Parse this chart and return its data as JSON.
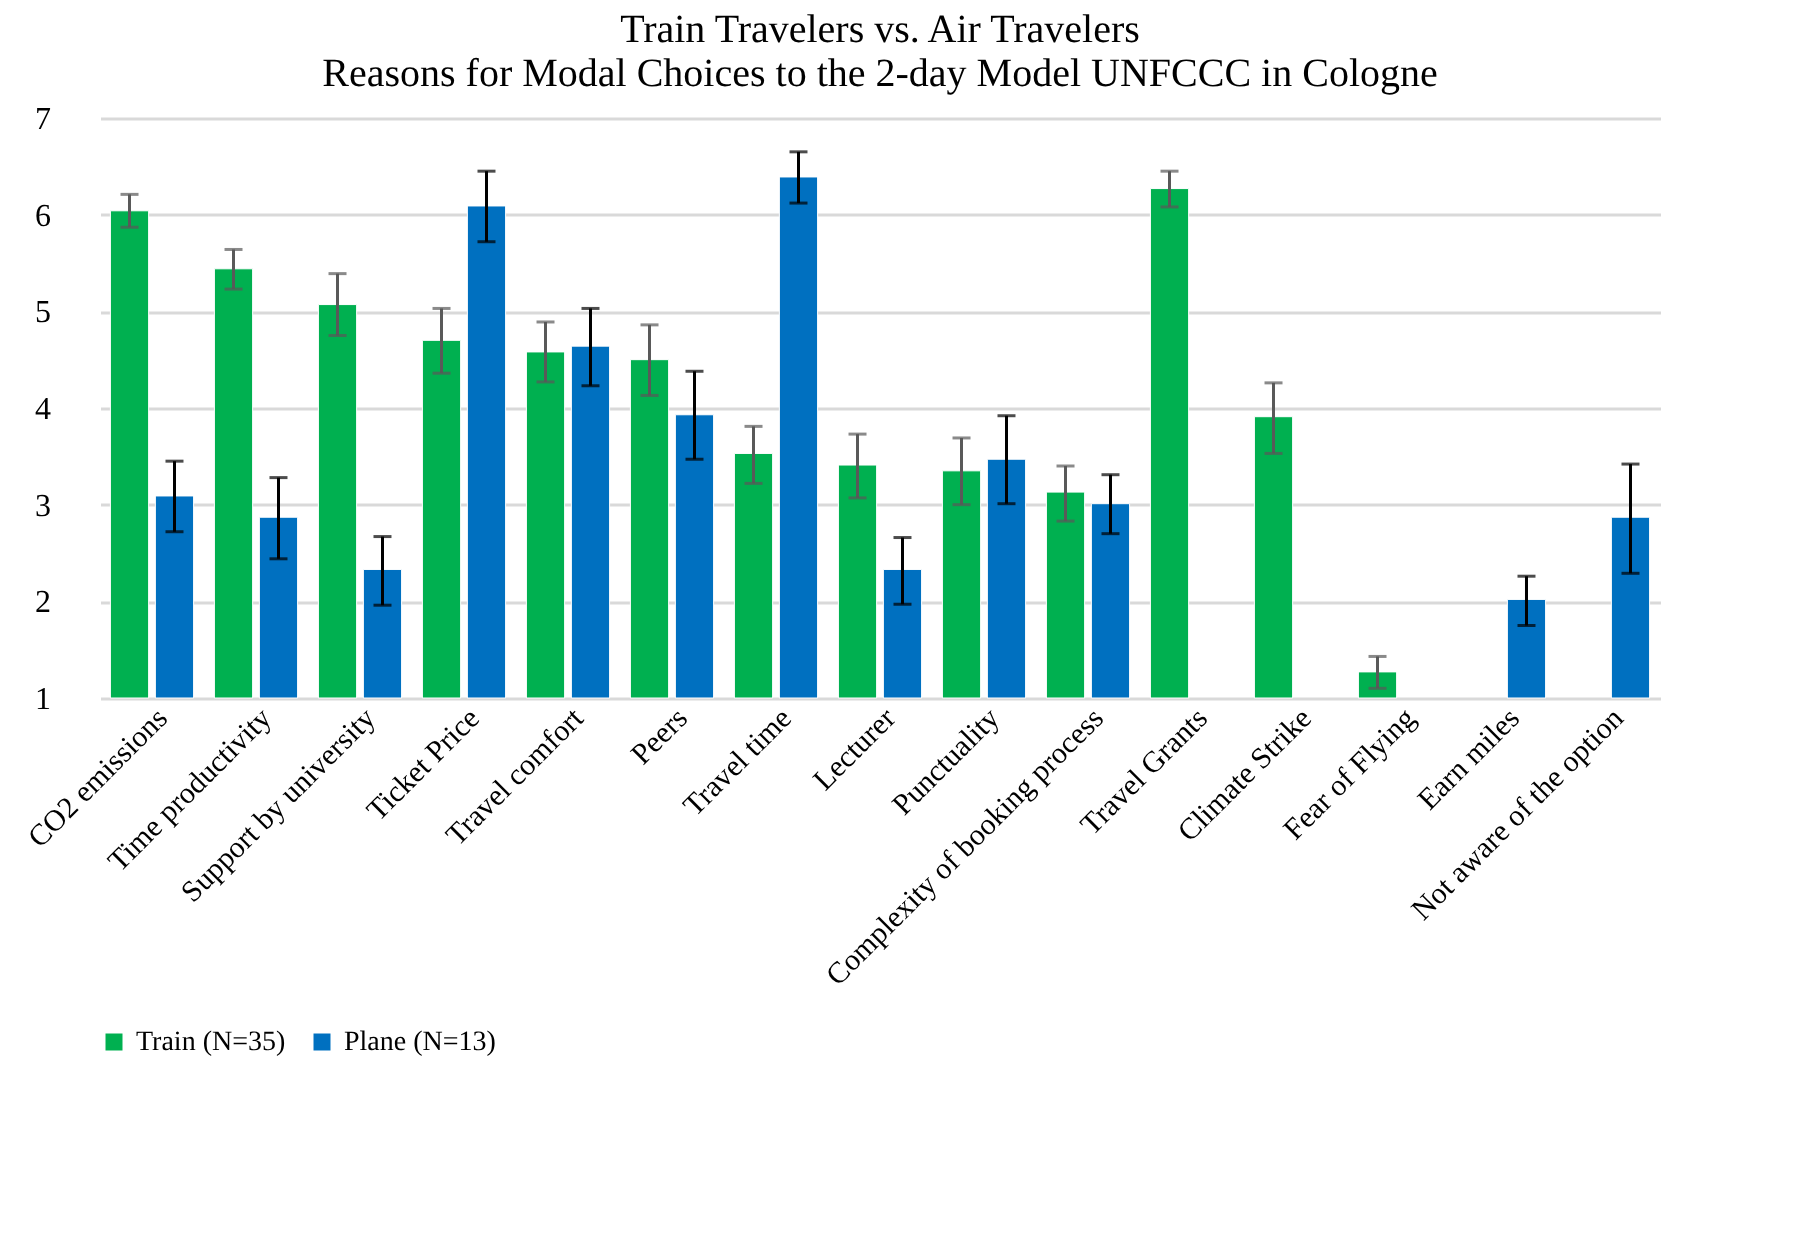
{
  "chart_data": {
    "type": "bar",
    "title": "Train Travelers vs. Air Travelers",
    "subtitle": "Reasons for Modal Choices to the 2-day Model UNFCCC in Cologne",
    "categories": [
      "CO2 emissions",
      "Time productivity",
      "Support by university",
      "Ticket Price",
      "Travel comfort",
      "Peers",
      "Travel time",
      "Lecturer",
      "Punctuality",
      "Complexity of booking process",
      "Travel Grants",
      "Climate Strike",
      "Fear of Flying",
      "Earn miles",
      "Not aware of the option"
    ],
    "series": [
      {
        "name": "Train (N=35)",
        "color": "#00b050",
        "values": [
          6.04,
          5.44,
          5.07,
          4.7,
          4.58,
          4.5,
          3.53,
          3.41,
          3.35,
          3.13,
          6.27,
          3.91,
          1.27,
          null,
          null
        ],
        "errors": [
          [
            5.87,
            6.21
          ],
          [
            5.23,
            5.64
          ],
          [
            4.75,
            5.39
          ],
          [
            4.36,
            5.03
          ],
          [
            4.27,
            4.89
          ],
          [
            4.13,
            4.86
          ],
          [
            3.22,
            3.81
          ],
          [
            3.07,
            3.73
          ],
          [
            3.0,
            3.69
          ],
          [
            2.83,
            3.4
          ],
          [
            6.08,
            6.45
          ],
          [
            3.53,
            4.26
          ],
          [
            1.1,
            1.43
          ],
          null,
          null
        ]
      },
      {
        "name": "Plane (N=13)",
        "color": "#0070c0",
        "values": [
          3.09,
          2.87,
          2.33,
          6.09,
          4.64,
          3.93,
          6.39,
          2.33,
          3.47,
          3.01,
          null,
          null,
          null,
          2.02,
          2.87
        ],
        "errors": [
          [
            2.72,
            3.45
          ],
          [
            2.44,
            3.28
          ],
          [
            1.96,
            2.67
          ],
          [
            5.72,
            6.45
          ],
          [
            4.23,
            5.03
          ],
          [
            3.47,
            4.38
          ],
          [
            6.12,
            6.65
          ],
          [
            1.97,
            2.66
          ],
          [
            3.01,
            3.92
          ],
          [
            2.7,
            3.31
          ],
          null,
          null,
          null,
          [
            1.75,
            2.26
          ],
          [
            2.29,
            3.42
          ]
        ]
      }
    ],
    "ylim": [
      1,
      7
    ],
    "yticks": [
      1,
      2,
      3,
      4,
      5,
      6,
      7
    ],
    "grid": "y",
    "legend": "bottom"
  }
}
